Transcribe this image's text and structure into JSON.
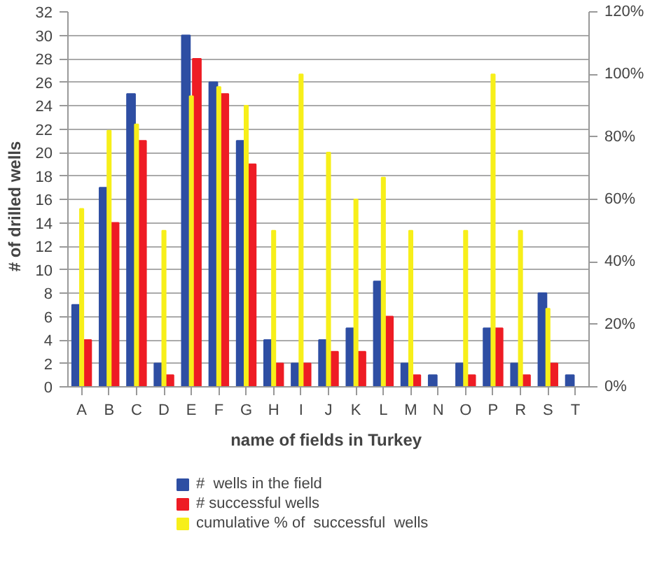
{
  "chart_data": {
    "type": "bar",
    "xlabel": "name  of fields in Turkey",
    "ylabel": "#  of  drilled  wells",
    "categories": [
      "A",
      "B",
      "C",
      "D",
      "E",
      "F",
      "G",
      "H",
      "I",
      "J",
      "K",
      "L",
      "M",
      "N",
      "O",
      "P",
      "R",
      "S",
      "T"
    ],
    "series": [
      {
        "name": "#  wells in the field",
        "color": "#2e4ea3",
        "values": [
          7,
          17,
          25,
          2,
          30,
          26,
          21,
          4,
          2,
          4,
          5,
          9,
          2,
          1,
          2,
          5,
          2,
          8,
          1
        ]
      },
      {
        "name": "# successful wells",
        "color": "#ee1c24",
        "values": [
          4,
          14,
          21,
          1,
          28,
          25,
          19,
          2,
          2,
          3,
          3,
          6,
          1,
          0,
          1,
          5,
          1,
          2,
          0
        ]
      },
      {
        "name": "cumulative % of  successful  wells",
        "color": "#f7ef1a",
        "axis": "y2",
        "values": [
          57,
          82,
          84,
          50,
          93,
          96,
          90,
          50,
          100,
          75,
          60,
          67,
          50,
          0,
          50,
          100,
          50,
          25,
          0
        ]
      }
    ],
    "ylim": [
      0,
      32
    ],
    "yticks": [
      0,
      2,
      4,
      6,
      8,
      10,
      12,
      14,
      16,
      18,
      20,
      22,
      24,
      26,
      28,
      30,
      32
    ],
    "y2lim": [
      0,
      120
    ],
    "y2ticks": [
      {
        "value": 0,
        "label": "0%"
      },
      {
        "value": 20,
        "label": "20%"
      },
      {
        "value": 40,
        "label": "40%"
      },
      {
        "value": 60,
        "label": "60%"
      },
      {
        "value": 80,
        "label": "80%"
      },
      {
        "value": 100,
        "label": "100%"
      },
      {
        "value": 120,
        "label": "120%"
      }
    ],
    "grid": "y",
    "legend": "bottom"
  }
}
